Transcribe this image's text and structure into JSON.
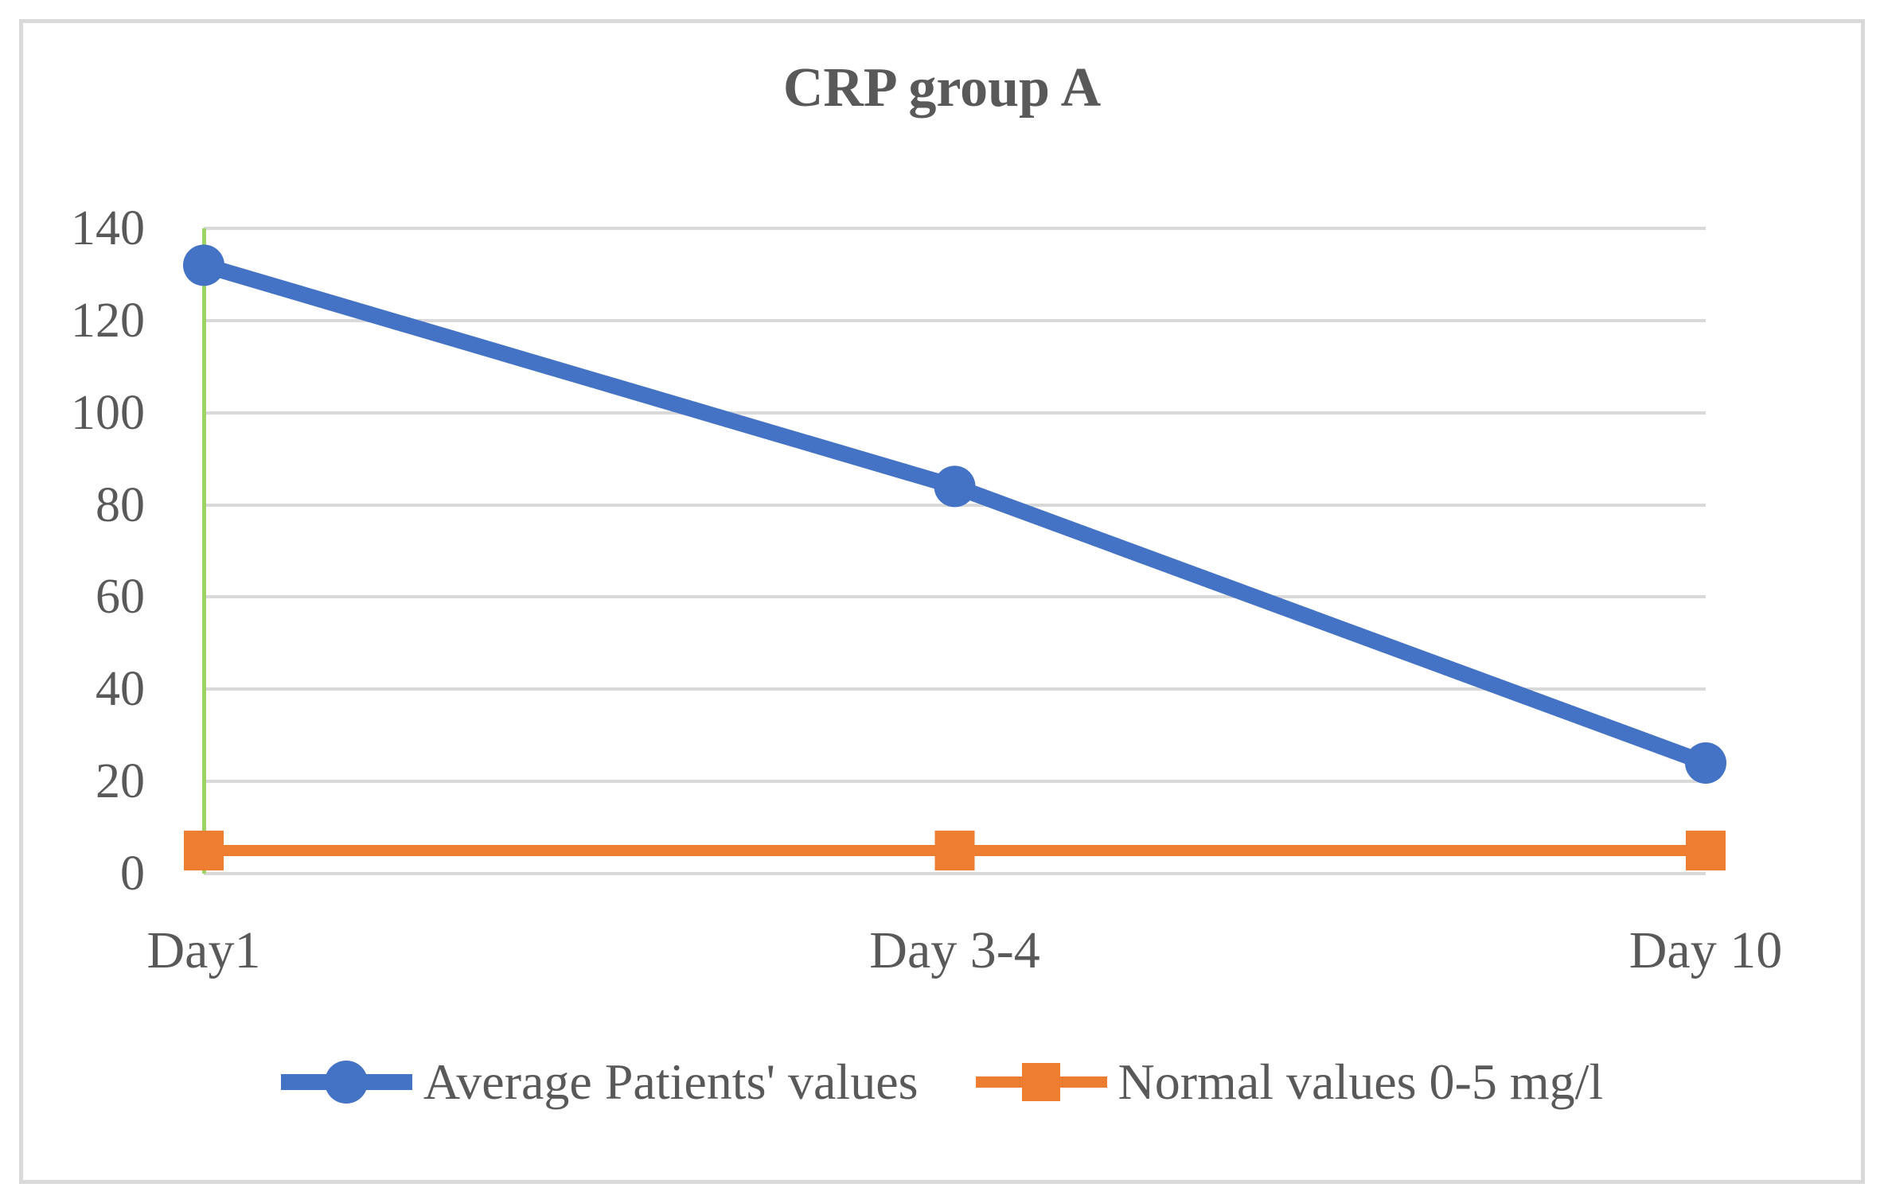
{
  "figure": {
    "background": "#FFFFFF",
    "border_color": "#D9D9D9",
    "text_color": "#595959",
    "gridline_color": "#D9D9D9",
    "axis_line_color": "#9ED463"
  },
  "chart_data": {
    "type": "line",
    "title": "CRP group A",
    "categories": [
      "Day1",
      "Day 3-4",
      "Day 10"
    ],
    "series": [
      {
        "name": "Average Patients' values",
        "values": [
          132,
          84,
          24
        ],
        "color": "#4472C4",
        "marker": "circle",
        "line_width": 20
      },
      {
        "name": "Normal values 0-5 mg/l",
        "values": [
          5,
          5,
          5
        ],
        "color": "#ED7D31",
        "marker": "square",
        "line_width": 14
      }
    ],
    "xlabel": "",
    "ylabel": "",
    "ylim": [
      0,
      140
    ],
    "yticks": [
      0,
      20,
      40,
      60,
      80,
      100,
      120,
      140
    ],
    "grid": "horizontal-only",
    "legend_position": "bottom"
  }
}
